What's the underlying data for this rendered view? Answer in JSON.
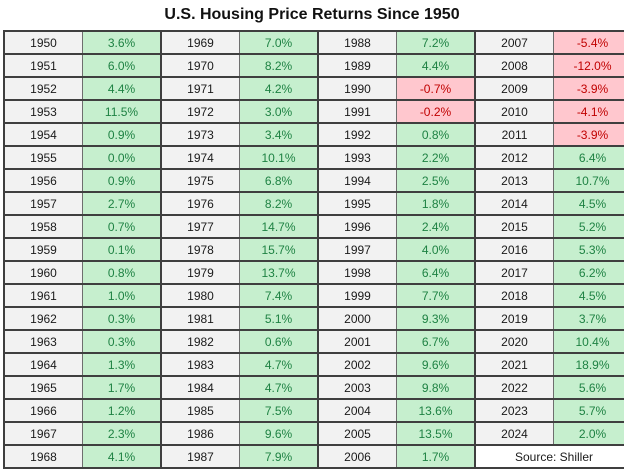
{
  "title": "U.S. Housing Price Returns Since 1950",
  "source_note": "Source: Shiller",
  "colors": {
    "positive_bg": "#C6EFCE",
    "positive_text": "#1E8243",
    "negative_bg": "#FFC7CE",
    "negative_text": "#C00000",
    "year_bg": "#F2F2F2",
    "border_dark": "#3F3F3F",
    "border_thin": "#6E6E6E"
  },
  "chart_data": {
    "type": "table",
    "title": "U.S. Housing Price Returns Since 1950",
    "source": "Source: Shiller",
    "layout": "4 column-pairs (year, annual return %); positive returns green, negative returns pink",
    "groups": [
      {
        "years": [
          "1950",
          "1951",
          "1952",
          "1953",
          "1954",
          "1955",
          "1956",
          "1957",
          "1958",
          "1959",
          "1960",
          "1961",
          "1962",
          "1963",
          "1964",
          "1965",
          "1966",
          "1967",
          "1968"
        ],
        "returns": [
          "3.6%",
          "6.0%",
          "4.4%",
          "11.5%",
          "0.9%",
          "0.0%",
          "0.9%",
          "2.7%",
          "0.7%",
          "0.1%",
          "0.8%",
          "1.0%",
          "0.3%",
          "0.3%",
          "1.3%",
          "1.7%",
          "1.2%",
          "2.3%",
          "4.1%"
        ]
      },
      {
        "years": [
          "1969",
          "1970",
          "1971",
          "1972",
          "1973",
          "1974",
          "1975",
          "1976",
          "1977",
          "1978",
          "1979",
          "1980",
          "1981",
          "1982",
          "1983",
          "1984",
          "1985",
          "1986",
          "1987"
        ],
        "returns": [
          "7.0%",
          "8.2%",
          "4.2%",
          "3.0%",
          "3.4%",
          "10.1%",
          "6.8%",
          "8.2%",
          "14.7%",
          "15.7%",
          "13.7%",
          "7.4%",
          "5.1%",
          "0.6%",
          "4.7%",
          "4.7%",
          "7.5%",
          "9.6%",
          "7.9%"
        ]
      },
      {
        "years": [
          "1988",
          "1989",
          "1990",
          "1991",
          "1992",
          "1993",
          "1994",
          "1995",
          "1996",
          "1997",
          "1998",
          "1999",
          "2000",
          "2001",
          "2002",
          "2003",
          "2004",
          "2005",
          "2006"
        ],
        "returns": [
          "7.2%",
          "4.4%",
          "-0.7%",
          "-0.2%",
          "0.8%",
          "2.2%",
          "2.5%",
          "1.8%",
          "2.4%",
          "4.0%",
          "6.4%",
          "7.7%",
          "9.3%",
          "6.7%",
          "9.6%",
          "9.8%",
          "13.6%",
          "13.5%",
          "1.7%"
        ]
      },
      {
        "years": [
          "2007",
          "2008",
          "2009",
          "2010",
          "2011",
          "2012",
          "2013",
          "2014",
          "2015",
          "2016",
          "2017",
          "2018",
          "2019",
          "2020",
          "2021",
          "2022",
          "2023",
          "2024"
        ],
        "returns": [
          "-5.4%",
          "-12.0%",
          "-3.9%",
          "-4.1%",
          "-3.9%",
          "6.4%",
          "10.7%",
          "4.5%",
          "5.2%",
          "5.3%",
          "6.2%",
          "4.5%",
          "3.7%",
          "10.4%",
          "18.9%",
          "5.6%",
          "5.7%",
          "2.0%"
        ]
      }
    ]
  }
}
